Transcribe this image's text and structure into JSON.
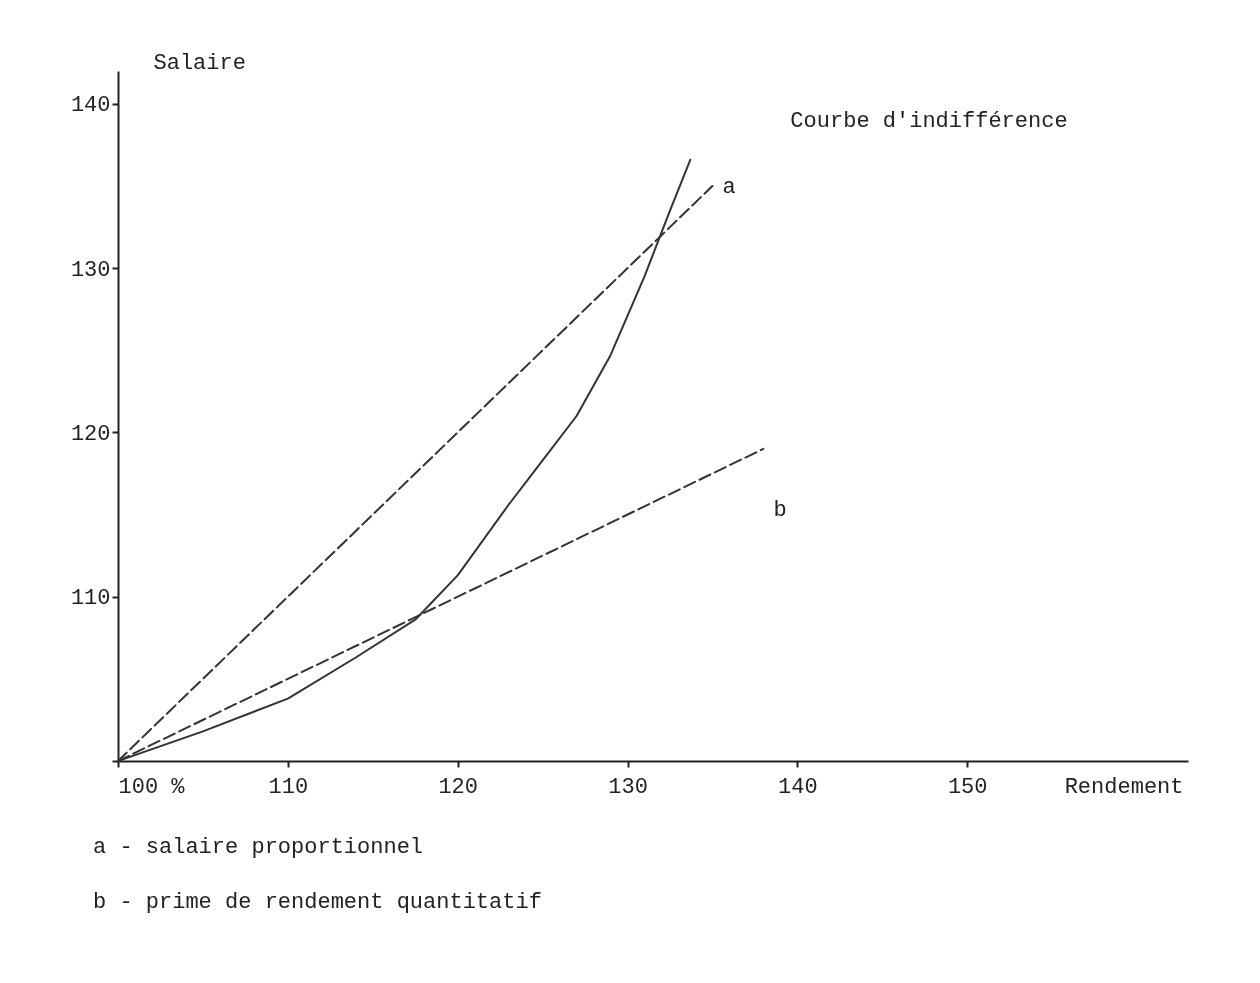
{
  "chart_data": {
    "type": "line",
    "xlabel": "Rendement",
    "ylabel": "Salaire",
    "xlim": [
      100,
      163
    ],
    "ylim": [
      100,
      142
    ],
    "xticks": [
      {
        "value": 100,
        "label": "100 %"
      },
      110,
      120,
      130,
      140,
      150
    ],
    "yticks": [
      {
        "value": 100,
        "label": null
      },
      110,
      120,
      130,
      140
    ],
    "series": [
      {
        "name": "Courbe d'indifférence",
        "color": "#333333",
        "line_style": "solid",
        "x": [
          100,
          105,
          110,
          114,
          117.5,
          120,
          123,
          125,
          127,
          129,
          131,
          132.5,
          133.7
        ],
        "values": [
          100,
          101.8,
          103.8,
          106.3,
          108.6,
          111.3,
          115.6,
          118.3,
          121,
          124.7,
          129.5,
          133.5,
          136.6
        ]
      },
      {
        "name": "a",
        "color": "#333333",
        "line_style": "dashed",
        "x": [
          100,
          135
        ],
        "values": [
          100,
          135
        ]
      },
      {
        "name": "b",
        "color": "#333333",
        "line_style": "dashed",
        "x": [
          100,
          138
        ],
        "values": [
          100,
          119
        ]
      }
    ],
    "annotations": [
      "a - salaire proportionnel",
      "b - prime de rendement quantitatif"
    ]
  }
}
